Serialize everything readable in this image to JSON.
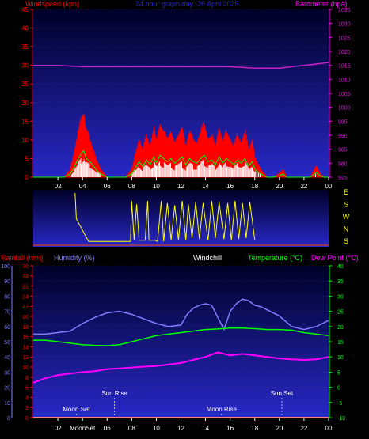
{
  "header": {
    "left_label": "Windspeed (kph)",
    "center_label": "24 hour graph day:  26 April 2025",
    "right_label": "Barometer (hpa)"
  },
  "colors": {
    "wind_fill": "#ff0000",
    "gust_white": "#ffffff",
    "wind_green": "#00ff00",
    "barometer": "#cc22cc",
    "direction": "#ffff00",
    "humidity": "#7f7fff",
    "temperature": "#00ff00",
    "dewpoint": "#ff00ff",
    "rain": "#ff0000",
    "left_axis": "#ff0000",
    "right_axis": "#ff00ff",
    "temp_axis": "#00ff00",
    "hum_axis": "#7f7fff",
    "plot_top": "#000028",
    "plot_bottom": "#2828c8"
  },
  "x_ticks": [
    "02",
    "04",
    "06",
    "08",
    "10",
    "12",
    "14",
    "16",
    "18",
    "20",
    "22",
    "00"
  ],
  "direction_labels": [
    "E",
    "S",
    "W",
    "N",
    "S"
  ],
  "bottom_header": {
    "rainfall": "Rainfall (mm)",
    "humidity": "Humidity (%)",
    "windchill": "Windchill",
    "temperature": "Temperature (°C)",
    "dewpoint": "Dew Point (°C)"
  },
  "astro": {
    "moon_set": "Moon Set",
    "sun_rise": "Sun Rise",
    "moon_rise": "Moon Rise",
    "sun_set": "Sun Set",
    "bottom_combo": "MoonSet"
  },
  "chart_data": [
    {
      "type": "area",
      "x_unit": "hour",
      "xlim": [
        0,
        24
      ],
      "ylim": [
        0,
        45
      ],
      "y_ticks": [
        0,
        5,
        10,
        15,
        20,
        25,
        30,
        35,
        40,
        45
      ],
      "y2lim": [
        975,
        1035
      ],
      "y2_ticks": [
        975,
        980,
        985,
        990,
        995,
        1000,
        1005,
        1010,
        1015,
        1020,
        1025,
        1030,
        1035
      ],
      "series": [
        {
          "axis": "y",
          "x": [
            0,
            0.5,
            1,
            1.5,
            2,
            2.5,
            3,
            3.3,
            3.6,
            3.9,
            4.1,
            4.3,
            4.6,
            4.9,
            5.2,
            5.5,
            6,
            6.5,
            7,
            7.5,
            8,
            8.3,
            8.6,
            8.9,
            9.2,
            9.5,
            9.8,
            10,
            10.3,
            10.6,
            10.9,
            11.2,
            11.5,
            11.8,
            12.1,
            12.4,
            12.7,
            13,
            13.3,
            13.6,
            13.9,
            14.2,
            14.5,
            14.8,
            15.1,
            15.4,
            15.7,
            16,
            16.3,
            16.6,
            16.9,
            17.2,
            17.5,
            17.8,
            18,
            18.5,
            19,
            19.5,
            20,
            20.3,
            20.6,
            21,
            21.5,
            22,
            22.5,
            23,
            23.3,
            23.6,
            24
          ],
          "values": [
            0,
            0,
            0,
            0,
            0,
            0,
            2,
            6,
            11,
            15,
            17,
            12,
            10,
            7,
            4,
            2,
            0,
            0,
            0,
            0,
            2,
            6,
            10,
            7,
            11,
            8,
            13,
            9,
            14,
            12,
            10,
            12,
            9,
            11,
            13,
            8,
            12,
            10,
            9,
            12,
            14,
            10,
            11,
            8,
            13,
            9,
            12,
            10,
            8,
            11,
            9,
            12,
            7,
            10,
            5,
            2,
            0,
            0,
            1,
            2,
            0,
            0,
            0,
            0,
            0,
            3,
            1,
            0,
            0
          ]
        },
        {
          "axis": "y2",
          "x": [
            0,
            2,
            4,
            6,
            8,
            10,
            12,
            14,
            16,
            18,
            20,
            22,
            24
          ],
          "values": [
            1015,
            1015,
            1014.5,
            1014.5,
            1014.5,
            1014.5,
            1014.5,
            1014.5,
            1014.5,
            1014,
            1014,
            1015,
            1016
          ]
        }
      ]
    },
    {
      "type": "line",
      "x_unit": "hour",
      "xlim": [
        0,
        24
      ],
      "y_ticks": [
        0,
        10,
        20,
        30,
        40,
        50,
        60,
        70,
        80,
        90,
        100
      ],
      "rain_ticks": [
        0,
        2,
        4,
        6,
        8,
        10,
        12,
        14,
        16,
        18,
        20,
        22,
        24,
        26,
        28,
        30
      ],
      "temp_ticks": [
        -10,
        -5,
        0,
        5,
        10,
        15,
        20,
        25,
        30,
        35,
        40
      ],
      "series": [
        {
          "name": "Humidity (%)",
          "x": [
            0,
            1,
            2,
            3,
            4,
            5,
            6,
            7,
            8,
            9,
            10,
            11,
            12,
            12.5,
            13,
            13.5,
            14,
            14.5,
            15,
            15.5,
            16,
            16.5,
            17,
            17.5,
            18,
            18.5,
            19,
            20,
            21,
            22,
            23,
            24
          ],
          "values": [
            55,
            55,
            56,
            57,
            62,
            66,
            69,
            70,
            68,
            65,
            62,
            60,
            61,
            68,
            72,
            74,
            75,
            74,
            66,
            58,
            70,
            75,
            78,
            77,
            74,
            73,
            71,
            67,
            60,
            58,
            60,
            64
          ]
        },
        {
          "name": "Temperature (°C)",
          "x": [
            0,
            1,
            2,
            3,
            4,
            5,
            6,
            7,
            8,
            9,
            10,
            11,
            12,
            13,
            14,
            15,
            16,
            17,
            18,
            19,
            20,
            21,
            22,
            23,
            24
          ],
          "values": [
            15.5,
            15.5,
            15,
            14.5,
            14,
            13.8,
            13.7,
            14,
            15,
            16,
            17,
            17.5,
            18,
            18.5,
            19,
            19.2,
            19.5,
            19.5,
            19.3,
            19,
            19,
            18.8,
            18,
            17.5,
            17
          ]
        },
        {
          "name": "Dew Point (°C)",
          "x": [
            0,
            1,
            2,
            3,
            4,
            5,
            6,
            7,
            8,
            9,
            10,
            11,
            12,
            13,
            14,
            15,
            16,
            17,
            18,
            19,
            20,
            21,
            22,
            23,
            24
          ],
          "values": [
            1.5,
            3,
            4,
            4.5,
            5,
            5.3,
            6,
            6.2,
            6.5,
            6.8,
            7,
            7.5,
            8,
            9,
            10,
            11.5,
            10.5,
            11,
            10.5,
            10,
            9.5,
            9.2,
            9,
            9.2,
            10
          ]
        },
        {
          "name": "Rainfall (mm)",
          "x": [
            0,
            24
          ],
          "values": [
            0,
            0
          ]
        }
      ]
    }
  ],
  "direction_data": {
    "xlim": [
      0,
      24
    ],
    "x": [
      0,
      3.4,
      3.5,
      4.5,
      4.6,
      5.5,
      5.6,
      7.9,
      8,
      8.2,
      8.4,
      8.6,
      9.1,
      9.3,
      9.4,
      9.9,
      10.1,
      10.4,
      10.6,
      10.9,
      11.2,
      11.5,
      11.8,
      12.1,
      12.4,
      12.6,
      12.9,
      13.2,
      13.5,
      13.8,
      14.2,
      14.5,
      14.8,
      15.1,
      15.5,
      15.8,
      16.1,
      16.4,
      16.7,
      17,
      17.3,
      17.6,
      18,
      18.1,
      24
    ],
    "values": [
      null,
      4.5,
      2.2,
      0.2,
      0.2,
      0.2,
      0.2,
      0.2,
      3.8,
      0.3,
      3.5,
      0.3,
      0.3,
      3.8,
      0.3,
      0.3,
      0.2,
      3.8,
      0.2,
      3.6,
      0.3,
      3.4,
      0.3,
      3.8,
      0.3,
      3.5,
      0.5,
      3.7,
      0.4,
      3.6,
      0.3,
      3.8,
      0.5,
      3.7,
      0.4,
      3.6,
      0.3,
      3.8,
      0.4,
      3.6,
      0.5,
      3.7,
      0.3,
      null,
      null
    ]
  }
}
